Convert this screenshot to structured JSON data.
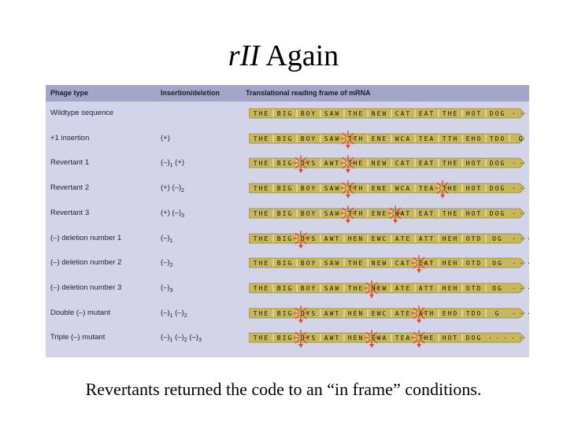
{
  "slide": {
    "title_main": "rII",
    "title_rest": " Again",
    "caption": "Revertants returned the code to an “in frame” conditions."
  },
  "figure": {
    "headers": {
      "phage_type": "Phage type",
      "insertion_deletion": "Insertion/deletion",
      "reading_frame": "Translational reading frame of mRNA"
    },
    "rows": [
      {
        "label": "Wildtype sequence",
        "mut": "",
        "codons": [
          "THE",
          "BIG",
          "BOY",
          "SAW",
          "THE",
          "NEW",
          "CAT",
          "EAT",
          "THE",
          "HOT",
          "DOG"
        ],
        "marks": [],
        "tail": "· ·"
      },
      {
        "label": "+1 insertion",
        "mut": "(+)",
        "codons": [
          "THE",
          "BIG",
          "BOY",
          "SAW",
          "TTH",
          "ENE",
          "WCA",
          "TEA",
          "TTH",
          "EHO",
          "TDO",
          "G"
        ],
        "marks": [
          4
        ],
        "tail": ""
      },
      {
        "label": "Revertant 1",
        "mut": "(–)₁ (+)",
        "codons": [
          "THE",
          "BIG",
          "DYS",
          "AWT",
          "THE",
          "NEW",
          "CAT",
          "EAT",
          "THE",
          "HOT",
          "DOG"
        ],
        "marks": [
          2,
          4
        ],
        "tail": "· ·"
      },
      {
        "label": "Revertant 2",
        "mut": "(+)  (–)₂",
        "codons": [
          "THE",
          "BIG",
          "BOY",
          "SAW",
          "TTH",
          "ENE",
          "WCA",
          "TEA",
          "THE",
          "HOT",
          "DOG"
        ],
        "marks": [
          4,
          8
        ],
        "tail": "· ·"
      },
      {
        "label": "Revertant 3",
        "mut": "(+)  (–)₃",
        "codons": [
          "THE",
          "BIG",
          "BOY",
          "SAW",
          "TTH",
          "ENE",
          "WAT",
          "EAT",
          "THE",
          "HOT",
          "DOG"
        ],
        "marks": [
          4,
          6
        ],
        "tail": "· ·"
      },
      {
        "label": "(–) deletion number 1",
        "mut": "(–)₁",
        "codons": [
          "THE",
          "BIG",
          "DYS",
          "AWT",
          "HEN",
          "EWC",
          "ATE",
          "ATT",
          "HEH",
          "OTD",
          "OG"
        ],
        "marks": [
          2
        ],
        "tail": "· · ·"
      },
      {
        "label": "(–) deletion number 2",
        "mut": "(–)₂",
        "codons": [
          "THE",
          "BIG",
          "BOY",
          "SAW",
          "THE",
          "NEW",
          "CAT",
          "EAT",
          "HEH",
          "OTD",
          "OG"
        ],
        "marks": [
          7
        ],
        "tail": "· · ·"
      },
      {
        "label": "(–) deletion number 3",
        "mut": "(–)₃",
        "codons": [
          "THE",
          "BIG",
          "BOY",
          "SAW",
          "THE",
          "NEW",
          "ATE",
          "ATT",
          "HEH",
          "OTD",
          "OG"
        ],
        "marks": [
          5
        ],
        "tail": "· · ·"
      },
      {
        "label": "Double (–) mutant",
        "mut": "(–)₁ (–)₂",
        "codons": [
          "THE",
          "BIG",
          "DYS",
          "AWT",
          "HEN",
          "EWC",
          "ATE",
          "ATH",
          "EHO",
          "TDO",
          "G"
        ],
        "marks": [
          2,
          7
        ],
        "tail": "· · · ·"
      },
      {
        "label": "Triple (–) mutant",
        "mut": "(–)₁ (–)₂ (–)₃",
        "codons": [
          "THE",
          "BIG",
          "DYS",
          "AWT",
          "HEN",
          "EWA",
          "TEA",
          "THE",
          "HOT",
          "DOG"
        ],
        "marks": [
          2,
          5,
          7
        ],
        "tail": "· · · · ·"
      }
    ]
  },
  "colors": {
    "strip": "#c9b85a",
    "strip_edge": "#7a6b24",
    "mark": "#e0463a"
  }
}
